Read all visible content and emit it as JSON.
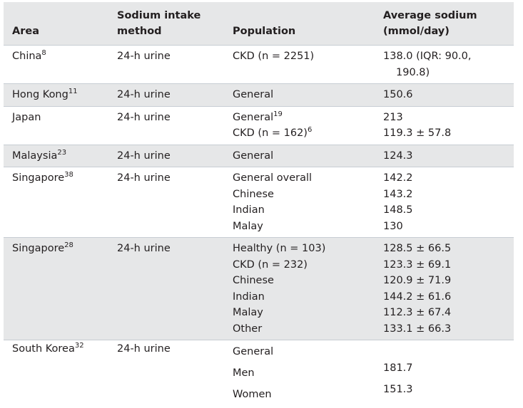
{
  "table": {
    "header": [
      "Area",
      "Sodium intake method",
      "Population",
      "Average sodium (mmol/day)"
    ],
    "rows": [
      {
        "area": {
          "name": "China",
          "ref": "8"
        },
        "method": "24-h urine",
        "lines": [
          {
            "population": {
              "text": "CKD (n = 2251)"
            },
            "sodium": "138.0 (IQR: 90.0, 190.8)"
          }
        ]
      },
      {
        "area": {
          "name": "Hong Kong",
          "ref": "11"
        },
        "method": "24-h urine",
        "lines": [
          {
            "population": {
              "text": "General"
            },
            "sodium": "150.6"
          }
        ]
      },
      {
        "area": {
          "name": "Japan"
        },
        "method": "24-h urine",
        "lines": [
          {
            "population": {
              "text": "General",
              "ref": "19"
            },
            "sodium": "213"
          },
          {
            "population": {
              "text": "CKD (n = 162)",
              "ref": "6"
            },
            "sodium": "119.3 ± 57.8"
          }
        ]
      },
      {
        "area": {
          "name": "Malaysia",
          "ref": "23"
        },
        "method": "24-h urine",
        "lines": [
          {
            "population": {
              "text": "General"
            },
            "sodium": "124.3"
          }
        ]
      },
      {
        "area": {
          "name": "Singapore",
          "ref": "38"
        },
        "method": "24-h urine",
        "lines": [
          {
            "population": {
              "text": "General overall"
            },
            "sodium": "142.2"
          },
          {
            "population": {
              "text": "Chinese"
            },
            "sodium": "143.2"
          },
          {
            "population": {
              "text": "Indian"
            },
            "sodium": "148.5"
          },
          {
            "population": {
              "text": "Malay"
            },
            "sodium": "130"
          }
        ]
      },
      {
        "area": {
          "name": "Singapore",
          "ref": "28"
        },
        "method": "24-h urine",
        "lines": [
          {
            "population": {
              "text": "Healthy (n = 103)"
            },
            "sodium": "128.5 ± 66.5"
          },
          {
            "population": {
              "text": "CKD (n = 232)"
            },
            "sodium": "123.3 ± 69.1"
          },
          {
            "population": {
              "text": "Chinese"
            },
            "sodium": "120.9 ± 71.9"
          },
          {
            "population": {
              "text": "Indian"
            },
            "sodium": "144.2 ± 61.6"
          },
          {
            "population": {
              "text": "Malay"
            },
            "sodium": "112.3 ± 67.4"
          },
          {
            "population": {
              "text": "Other"
            },
            "sodium": "133.1 ± 66.3"
          }
        ]
      },
      {
        "area": {
          "name": "South Korea",
          "ref": "32"
        },
        "method": "24-h urine",
        "lines": [
          {
            "population": {
              "text": "General"
            },
            "sodium": null
          },
          {
            "population": {
              "text": "Men"
            },
            "sodium": "181.7"
          },
          {
            "population": {
              "text": "Women"
            },
            "sodium": "151.3"
          }
        ]
      }
    ]
  }
}
